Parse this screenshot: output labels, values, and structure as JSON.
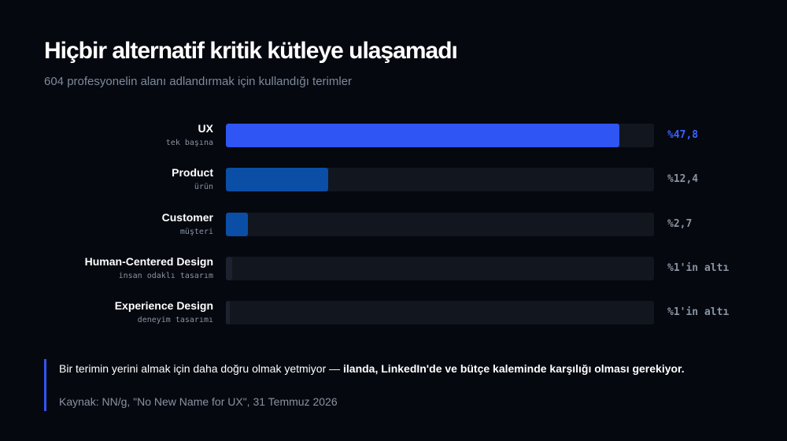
{
  "title": "Hiçbir alternatif kritik kütleye ulaşamadı",
  "subtitle": "604 profesyonelin alanı adlandırmak için kullandığı terimler",
  "colors": {
    "background": "#05080f",
    "highlight_bar": "#2f55f4",
    "bar": "#0a4ea6",
    "track": "#12171f",
    "highlight_value": "#3b63ff",
    "muted": "#8a93a1"
  },
  "chart_data": {
    "type": "bar",
    "orientation": "horizontal",
    "xlim": [
      0,
      52
    ],
    "categories": [
      "UX",
      "Product",
      "Customer",
      "Human-Centered Design",
      "Experience Design"
    ],
    "category_subtitles": [
      "tek başına",
      "ürün",
      "müşteri",
      "insan odaklı tasarım",
      "deneyim tasarımı"
    ],
    "values": [
      47.8,
      12.4,
      2.7,
      0.8,
      0.5
    ],
    "value_labels": [
      "%47,8",
      "%12,4",
      "%2,7",
      "%1'in altı",
      "%1'in altı"
    ],
    "highlight_index": 0
  },
  "note": {
    "text_plain": "Bir terimin yerini almak için daha doğru olmak yetmiyor —",
    "text_bold": "ilanda, LinkedIn'de ve bütçe kaleminde karşılığı olması gerekiyor.",
    "source": "Kaynak: NN/g, \"No New Name for UX\", 31 Temmuz 2026"
  }
}
